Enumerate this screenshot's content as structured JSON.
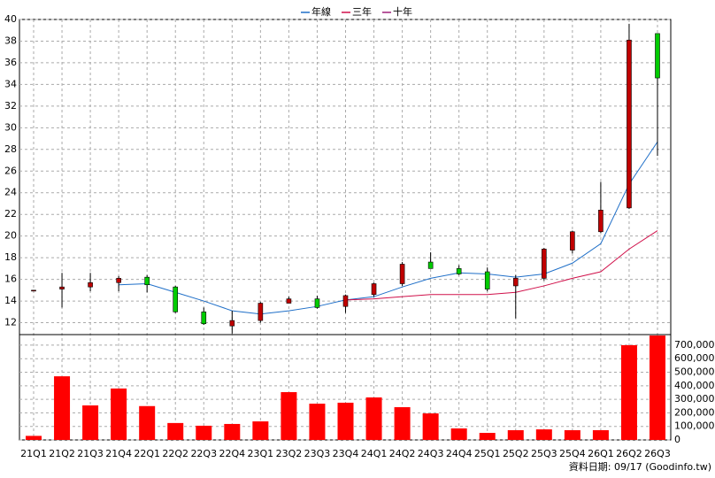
{
  "chart_data": {
    "type": "candlestick",
    "categories": [
      "21Q1",
      "21Q2",
      "21Q3",
      "21Q4",
      "22Q1",
      "22Q2",
      "22Q3",
      "22Q4",
      "23Q1",
      "23Q2",
      "23Q3",
      "23Q4",
      "24Q1",
      "24Q2",
      "24Q3",
      "24Q4",
      "25Q1",
      "25Q2",
      "25Q3",
      "25Q4",
      "26Q1",
      "26Q2",
      "26Q3"
    ],
    "ohlc": {
      "open": [
        15.0,
        15.1,
        15.3,
        15.7,
        16.2,
        15.3,
        13.0,
        11.7,
        12.2,
        13.8,
        14.2,
        13.5,
        14.6,
        15.6,
        17.6,
        17.0,
        16.7,
        15.4,
        16.1,
        18.7,
        20.4,
        22.6,
        38.7
      ],
      "high": [
        15.0,
        16.6,
        16.6,
        16.3,
        16.4,
        15.4,
        13.4,
        13.1,
        13.9,
        14.4,
        14.5,
        14.6,
        15.7,
        17.6,
        18.5,
        17.3,
        17.1,
        16.4,
        18.9,
        20.5,
        25.0,
        39.6,
        38.7
      ],
      "low": [
        15.0,
        13.4,
        14.9,
        14.9,
        14.8,
        12.9,
        11.8,
        11.0,
        12.0,
        13.8,
        13.3,
        12.9,
        14.4,
        15.4,
        17.0,
        16.4,
        14.9,
        12.4,
        15.9,
        18.4,
        20.3,
        22.5,
        27.4
      ],
      "close": [
        15.0,
        15.3,
        15.7,
        16.1,
        15.5,
        13.0,
        11.9,
        12.2,
        13.8,
        14.2,
        13.4,
        14.5,
        15.6,
        17.4,
        17.0,
        16.5,
        15.1,
        16.1,
        18.8,
        20.4,
        22.4,
        38.1,
        34.6
      ]
    },
    "up_color": "#c00000",
    "down_color": "#00cc00",
    "series": [
      {
        "name": "年線",
        "color": "#1f6fc8",
        "values": [
          null,
          null,
          null,
          15.5,
          15.6,
          14.8,
          14.0,
          13.1,
          12.8,
          13.1,
          13.5,
          14.1,
          14.4,
          15.3,
          16.1,
          16.6,
          16.5,
          16.2,
          16.5,
          17.5,
          19.3,
          24.8,
          28.7
        ]
      },
      {
        "name": "三年",
        "color": "#d0104a",
        "values": [
          null,
          null,
          null,
          null,
          null,
          null,
          null,
          null,
          null,
          null,
          null,
          14.1,
          14.2,
          14.4,
          14.6,
          14.6,
          14.6,
          14.8,
          15.4,
          16.1,
          16.7,
          18.8,
          20.5
        ]
      },
      {
        "name": "十年",
        "color": "#a0207a",
        "values": [
          null,
          null,
          null,
          null,
          null,
          null,
          null,
          null,
          null,
          null,
          null,
          null,
          null,
          null,
          null,
          null,
          null,
          null,
          null,
          null,
          null,
          null,
          null
        ]
      }
    ],
    "ylim": [
      10.9,
      40
    ],
    "yticks": [
      12,
      14,
      16,
      18,
      20,
      22,
      24,
      26,
      28,
      30,
      32,
      34,
      36,
      38,
      40
    ],
    "volume": {
      "color": "#ff0000",
      "values": [
        30000,
        470000,
        255000,
        380000,
        250000,
        125000,
        105000,
        118000,
        137000,
        353000,
        268000,
        275000,
        314000,
        242000,
        196000,
        85000,
        52000,
        72000,
        78000,
        72000,
        72000,
        700000,
        771000
      ]
    },
    "y2lim": [
      0,
      778000
    ],
    "y2ticks": [
      0,
      {
        "value": 100000,
        "label": "100,000"
      },
      {
        "value": 200000,
        "label": "200,000"
      },
      {
        "value": 300000,
        "label": "300,000"
      },
      {
        "value": 400000,
        "label": "400,000"
      },
      {
        "value": 500000,
        "label": "500,000"
      },
      {
        "value": 600000,
        "label": "600,000"
      },
      {
        "value": 700000,
        "label": "700,000"
      }
    ],
    "grid": true,
    "footnote": "資料日期: 09/17  (Goodinfo.tw)"
  }
}
